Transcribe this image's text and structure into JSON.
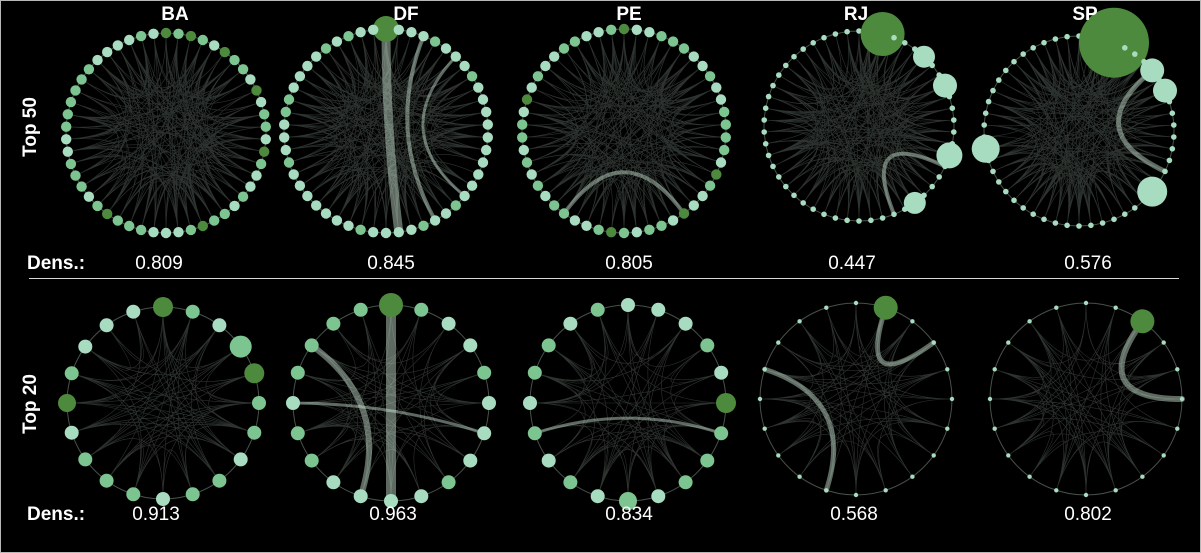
{
  "columns": [
    "BA",
    "DF",
    "PE",
    "RJ",
    "SP"
  ],
  "rows": [
    {
      "label": "Top 50",
      "dens_label": "Dens.:",
      "densities": [
        "0.809",
        "0.845",
        "0.805",
        "0.447",
        "0.576"
      ]
    },
    {
      "label": "Top 20",
      "dens_label": "Dens.:",
      "densities": [
        "0.913",
        "0.963",
        "0.834",
        "0.568",
        "0.802"
      ]
    }
  ],
  "colors": {
    "background": "#000000",
    "node_light": "#a8dcc0",
    "node_mid": "#7cc490",
    "node_dark": "#4e8a3e",
    "edge": "#cfe9d8"
  }
}
